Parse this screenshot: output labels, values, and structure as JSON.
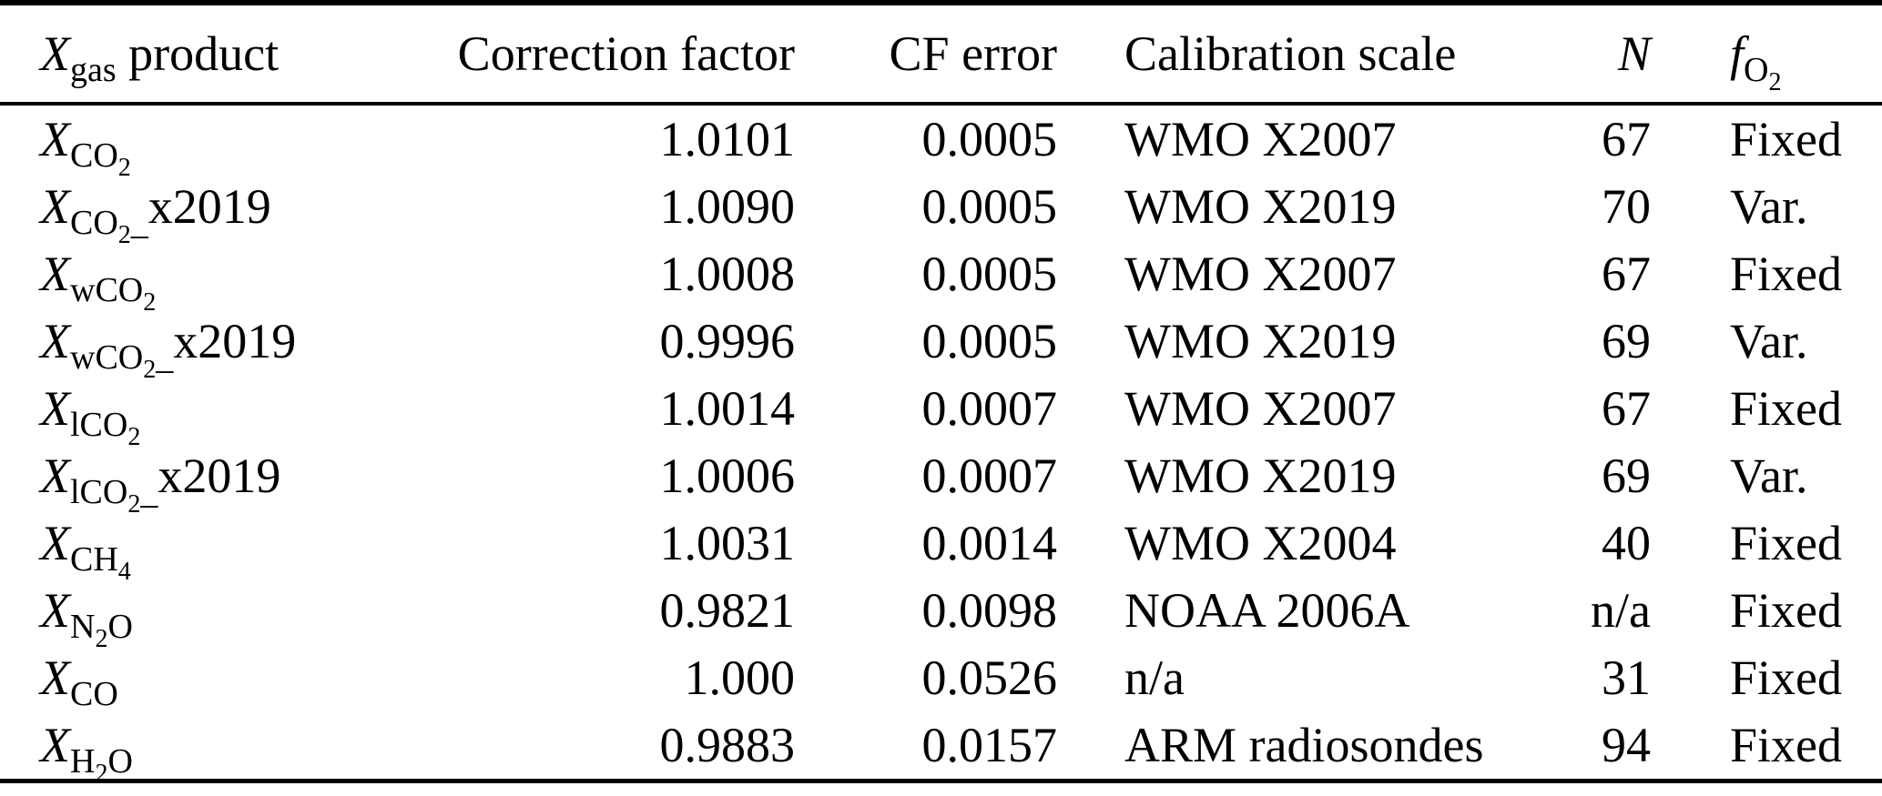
{
  "table": {
    "header": {
      "product_parts": [
        [
          "X",
          "bi"
        ],
        [
          "gas",
          "sub"
        ],
        [
          " product",
          "base"
        ]
      ],
      "correction_factor": "Correction factor",
      "cf_error": "CF error",
      "calibration_scale": "Calibration scale",
      "n_parts": [
        [
          "N",
          "bi"
        ]
      ],
      "fo2_parts": [
        [
          "f",
          "bi"
        ],
        [
          "O",
          "sub"
        ],
        [
          "2",
          "subsub"
        ]
      ]
    },
    "rows": [
      {
        "product_parts": [
          [
            "X",
            "bi"
          ],
          [
            "CO",
            "sub"
          ],
          [
            "2",
            "subsub"
          ]
        ],
        "correction_factor": "1.0101",
        "cf_error": "0.0005",
        "calibration_scale": "WMO X2007",
        "n": "67",
        "fo2": "Fixed"
      },
      {
        "product_parts": [
          [
            "X",
            "bi"
          ],
          [
            "CO",
            "sub"
          ],
          [
            "2",
            "subsub"
          ],
          [
            "_",
            "sub"
          ],
          [
            "x2019",
            "base"
          ]
        ],
        "correction_factor": "1.0090",
        "cf_error": "0.0005",
        "calibration_scale": "WMO X2019",
        "n": "70",
        "fo2": "Var."
      },
      {
        "product_parts": [
          [
            "X",
            "bi"
          ],
          [
            "wCO",
            "sub"
          ],
          [
            "2",
            "subsub"
          ]
        ],
        "correction_factor": "1.0008",
        "cf_error": "0.0005",
        "calibration_scale": "WMO X2007",
        "n": "67",
        "fo2": "Fixed"
      },
      {
        "product_parts": [
          [
            "X",
            "bi"
          ],
          [
            "wCO",
            "sub"
          ],
          [
            "2",
            "subsub"
          ],
          [
            "_",
            "sub"
          ],
          [
            "x2019",
            "base"
          ]
        ],
        "correction_factor": "0.9996",
        "cf_error": "0.0005",
        "calibration_scale": "WMO X2019",
        "n": "69",
        "fo2": "Var."
      },
      {
        "product_parts": [
          [
            "X",
            "bi"
          ],
          [
            "lCO",
            "sub"
          ],
          [
            "2",
            "subsub"
          ]
        ],
        "correction_factor": "1.0014",
        "cf_error": "0.0007",
        "calibration_scale": "WMO X2007",
        "n": "67",
        "fo2": "Fixed"
      },
      {
        "product_parts": [
          [
            "X",
            "bi"
          ],
          [
            "lCO",
            "sub"
          ],
          [
            "2",
            "subsub"
          ],
          [
            "_",
            "sub"
          ],
          [
            "x2019",
            "base"
          ]
        ],
        "correction_factor": "1.0006",
        "cf_error": "0.0007",
        "calibration_scale": "WMO X2019",
        "n": "69",
        "fo2": "Var."
      },
      {
        "product_parts": [
          [
            "X",
            "bi"
          ],
          [
            "CH",
            "sub"
          ],
          [
            "4",
            "subsub"
          ]
        ],
        "correction_factor": "1.0031",
        "cf_error": "0.0014",
        "calibration_scale": "WMO X2004",
        "n": "40",
        "fo2": "Fixed"
      },
      {
        "product_parts": [
          [
            "X",
            "bi"
          ],
          [
            "N",
            "sub"
          ],
          [
            "2",
            "subsub"
          ],
          [
            "O",
            "sub"
          ]
        ],
        "correction_factor": "0.9821",
        "cf_error": "0.0098",
        "calibration_scale": "NOAA 2006A",
        "n": "n/a",
        "fo2": "Fixed"
      },
      {
        "product_parts": [
          [
            "X",
            "bi"
          ],
          [
            "CO",
            "sub"
          ]
        ],
        "correction_factor": "1.000",
        "cf_error": "0.0526",
        "calibration_scale": "n/a",
        "n": "31",
        "fo2": "Fixed"
      },
      {
        "product_parts": [
          [
            "X",
            "bi"
          ],
          [
            "H",
            "sub"
          ],
          [
            "2",
            "subsub"
          ],
          [
            "O",
            "sub"
          ]
        ],
        "correction_factor": "0.9883",
        "cf_error": "0.0157",
        "calibration_scale": "ARM radiosondes",
        "n": "94",
        "fo2": "Fixed"
      }
    ]
  }
}
